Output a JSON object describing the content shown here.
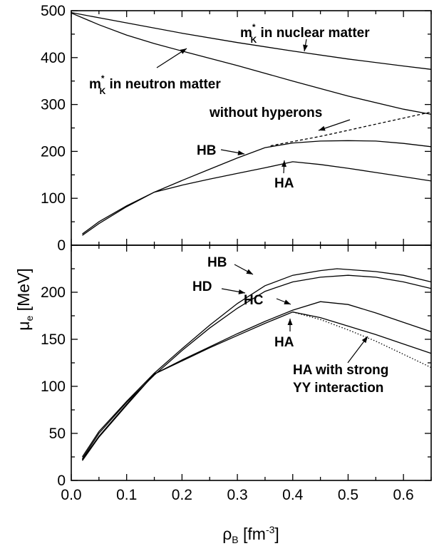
{
  "chart_data": [
    {
      "type": "line",
      "panel": "top",
      "xlim": [
        0.0,
        0.65
      ],
      "ylim": [
        0,
        500
      ],
      "y_ticks": [
        0,
        100,
        200,
        300,
        400,
        500
      ],
      "y_tick_labels": [
        "0",
        "100",
        "200",
        "300",
        "400",
        "500"
      ],
      "series": [
        {
          "name": "m*K in nuclear matter",
          "style": "solid",
          "x": [
            0.0,
            0.05,
            0.1,
            0.2,
            0.3,
            0.4,
            0.5,
            0.6,
            0.65
          ],
          "values": [
            496,
            485,
            474,
            452,
            432,
            414,
            397,
            382,
            375
          ]
        },
        {
          "name": "m*K in neutron matter",
          "style": "solid",
          "x": [
            0.0,
            0.05,
            0.1,
            0.15,
            0.2,
            0.3,
            0.4,
            0.5,
            0.6,
            0.65
          ],
          "values": [
            495,
            470,
            448,
            430,
            414,
            383,
            350,
            318,
            290,
            279
          ]
        },
        {
          "name": "without hyperons",
          "style": "dashed",
          "x": [
            0.36,
            0.4,
            0.45,
            0.5,
            0.55,
            0.6,
            0.65
          ],
          "values": [
            212,
            221,
            232,
            245,
            258,
            271,
            284
          ]
        },
        {
          "name": "HB",
          "style": "solid",
          "x": [
            0.02,
            0.05,
            0.1,
            0.15,
            0.2,
            0.25,
            0.3,
            0.35,
            0.4,
            0.45,
            0.5,
            0.55,
            0.6,
            0.65
          ],
          "values": [
            24,
            50,
            84,
            113,
            138,
            162,
            186,
            208,
            218,
            222,
            223,
            222,
            217,
            210
          ]
        },
        {
          "name": "HA",
          "style": "solid",
          "x": [
            0.02,
            0.05,
            0.1,
            0.15,
            0.2,
            0.25,
            0.3,
            0.35,
            0.4,
            0.45,
            0.5,
            0.55,
            0.6,
            0.65
          ],
          "values": [
            21,
            46,
            82,
            113,
            128,
            141,
            153,
            165,
            178,
            172,
            164,
            155,
            146,
            137
          ]
        }
      ],
      "annotations": [
        {
          "text": "m",
          "sup": "*",
          "sub": "K",
          "suffix": " in nuclear matter"
        },
        {
          "text": "m",
          "sup": "*",
          "sub": "K",
          "suffix": " in neutron matter"
        },
        {
          "text": "without hyperons"
        },
        {
          "text": "HB"
        },
        {
          "text": "HA"
        }
      ]
    },
    {
      "type": "line",
      "panel": "bottom",
      "xlim": [
        0.0,
        0.65
      ],
      "ylim": [
        0,
        250
      ],
      "y_ticks": [
        0,
        50,
        100,
        150,
        200
      ],
      "y_tick_labels": [
        "0",
        "50",
        "100",
        "150",
        "200"
      ],
      "x_ticks": [
        0.0,
        0.1,
        0.2,
        0.3,
        0.4,
        0.5,
        0.6
      ],
      "x_tick_labels": [
        "0.0",
        "0.1",
        "0.2",
        "0.3",
        "0.4",
        "0.5",
        "0.6"
      ],
      "series": [
        {
          "name": "HB",
          "style": "solid",
          "x": [
            0.02,
            0.05,
            0.1,
            0.15,
            0.2,
            0.25,
            0.3,
            0.35,
            0.4,
            0.45,
            0.48,
            0.55,
            0.6,
            0.65
          ],
          "values": [
            25,
            52,
            84,
            114,
            140,
            165,
            188,
            207,
            218,
            223,
            225,
            222,
            218,
            211
          ]
        },
        {
          "name": "HD",
          "style": "solid",
          "x": [
            0.02,
            0.05,
            0.1,
            0.15,
            0.2,
            0.25,
            0.3,
            0.35,
            0.4,
            0.45,
            0.5,
            0.55,
            0.6,
            0.65
          ],
          "values": [
            23,
            50,
            83,
            112,
            138,
            162,
            183,
            201,
            211,
            216,
            218,
            216,
            211,
            204
          ]
        },
        {
          "name": "HC",
          "style": "solid",
          "x": [
            0.02,
            0.05,
            0.1,
            0.15,
            0.2,
            0.25,
            0.3,
            0.35,
            0.4,
            0.45,
            0.5,
            0.55,
            0.6,
            0.65
          ],
          "values": [
            22,
            47,
            81,
            113,
            128,
            142,
            156,
            169,
            181,
            190,
            187,
            178,
            168,
            158
          ]
        },
        {
          "name": "HA",
          "style": "solid",
          "x": [
            0.02,
            0.05,
            0.1,
            0.15,
            0.2,
            0.25,
            0.3,
            0.35,
            0.4,
            0.45,
            0.5,
            0.55,
            0.6,
            0.65
          ],
          "values": [
            21,
            46,
            80,
            113,
            127,
            141,
            154,
            167,
            179,
            173,
            164,
            155,
            145,
            135
          ]
        },
        {
          "name": "HA with strong YY interaction",
          "style": "dotted",
          "x": [
            0.4,
            0.45,
            0.5,
            0.55,
            0.6,
            0.65
          ],
          "values": [
            179,
            171,
            160,
            148,
            134,
            120
          ]
        }
      ],
      "annotations": [
        {
          "text": "HB"
        },
        {
          "text": "HD"
        },
        {
          "text": "HC"
        },
        {
          "text": "HA"
        },
        {
          "text": "HA with strong"
        },
        {
          "text": "YY interaction"
        }
      ]
    }
  ],
  "axes": {
    "ylabel_main": "μ",
    "ylabel_sub": "e",
    "ylabel_unit": " [MeV]",
    "xlabel_main": "ρ",
    "xlabel_sub": "B",
    "xlabel_unit_pre": " [fm",
    "xlabel_unit_sup": "-3",
    "xlabel_unit_post": "]"
  }
}
